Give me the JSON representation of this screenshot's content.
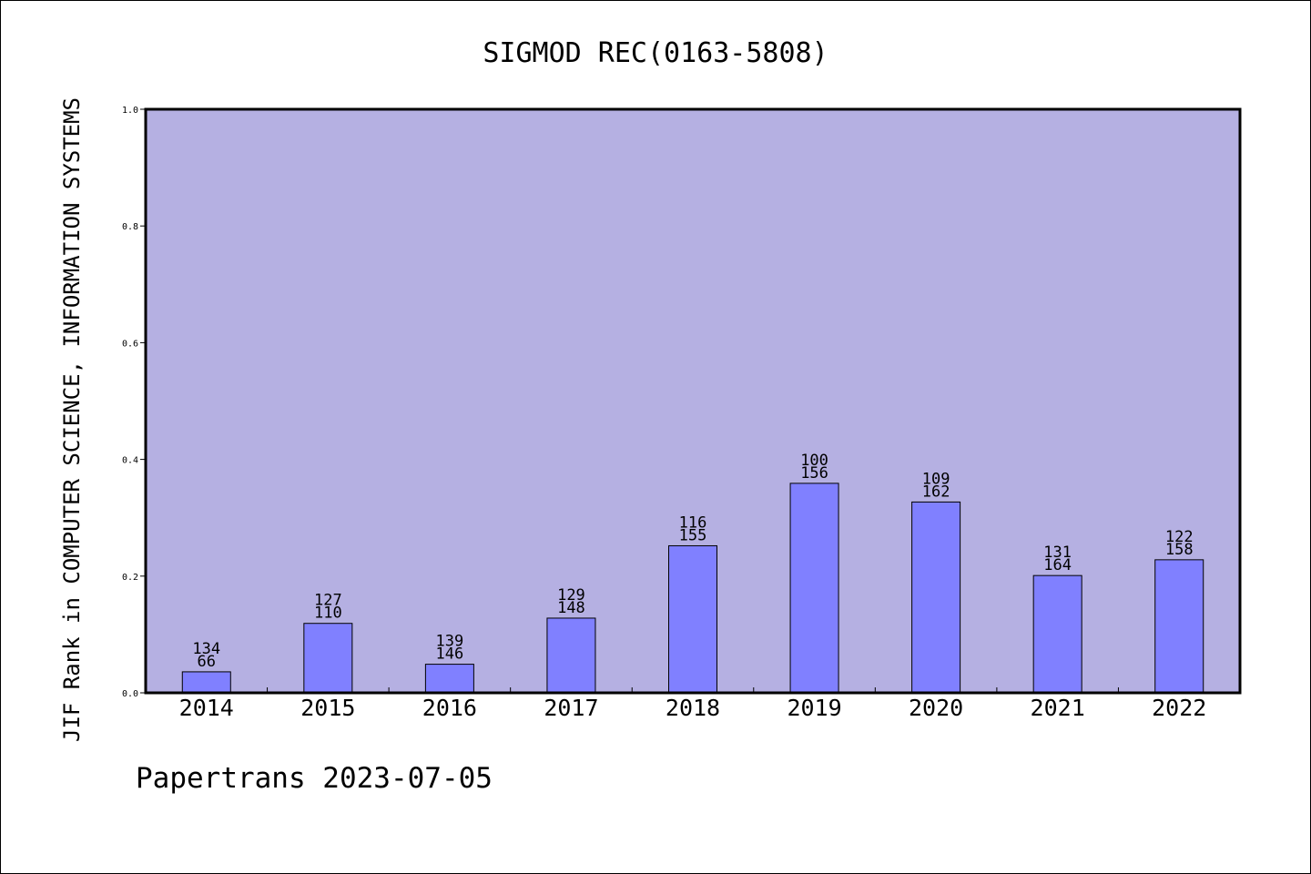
{
  "chart_data": {
    "type": "bar",
    "title": "SIGMOD REC(0163-5808)",
    "ylabel": "JIF Rank in COMPUTER SCIENCE, INFORMATION SYSTEMS",
    "xlabel": "",
    "ylim": [
      0,
      1.0
    ],
    "yticks": [
      "0.0",
      "0.2",
      "0.4",
      "0.6",
      "0.8",
      "1.0"
    ],
    "categories": [
      "2014",
      "2015",
      "2016",
      "2017",
      "2018",
      "2019",
      "2020",
      "2021",
      "2022"
    ],
    "values": [
      0.036,
      0.119,
      0.049,
      0.128,
      0.252,
      0.359,
      0.327,
      0.201,
      0.228
    ],
    "labels_top": [
      "134",
      "127",
      "139",
      "129",
      "116",
      "100",
      "109",
      "131",
      "122"
    ],
    "labels_bottom": [
      "66",
      "110",
      "146",
      "148",
      "155",
      "156",
      "162",
      "164",
      "158"
    ],
    "grid": false,
    "legend": "none",
    "colors": {
      "plot_bg": "#b5b0e2",
      "bar": "#8080ff",
      "axis": "#000000"
    }
  },
  "footer": {
    "text": "Papertrans 2023-07-05"
  }
}
